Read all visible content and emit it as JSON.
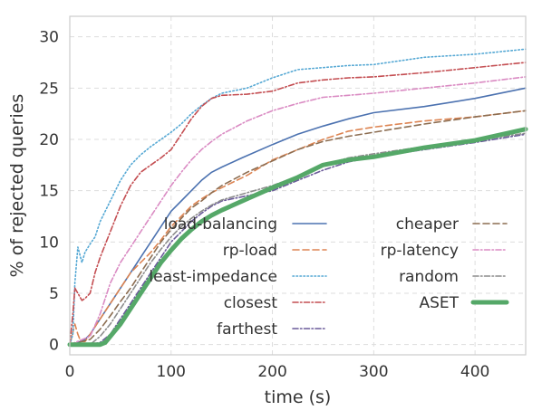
{
  "chart_data": {
    "type": "line",
    "title": "",
    "xlabel": "time (s)",
    "ylabel": "% of rejected queries",
    "xlim": [
      0,
      450
    ],
    "ylim": [
      -1,
      32
    ],
    "xticks": [
      0,
      100,
      200,
      300,
      400
    ],
    "yticks": [
      0,
      5,
      10,
      15,
      20,
      25,
      30
    ],
    "grid": true,
    "legend_position": "center-right",
    "series": [
      {
        "name": "load-balancing",
        "color": "#4c72b0",
        "style": "solid",
        "points": [
          [
            0,
            0
          ],
          [
            5,
            0
          ],
          [
            10,
            0.3
          ],
          [
            15,
            0.5
          ],
          [
            20,
            1
          ],
          [
            30,
            2.5
          ],
          [
            40,
            4
          ],
          [
            50,
            5.5
          ],
          [
            60,
            7
          ],
          [
            70,
            8.5
          ],
          [
            80,
            10
          ],
          [
            90,
            11.5
          ],
          [
            100,
            13
          ],
          [
            110,
            14
          ],
          [
            120,
            15
          ],
          [
            130,
            16
          ],
          [
            140,
            16.8
          ],
          [
            150,
            17.3
          ],
          [
            170,
            18.2
          ],
          [
            200,
            19.5
          ],
          [
            225,
            20.5
          ],
          [
            250,
            21.3
          ],
          [
            275,
            22
          ],
          [
            300,
            22.6
          ],
          [
            350,
            23.2
          ],
          [
            400,
            24
          ],
          [
            450,
            25
          ]
        ]
      },
      {
        "name": "rp-load",
        "color": "#dd8452",
        "style": "dashed",
        "points": [
          [
            0,
            0
          ],
          [
            5,
            2
          ],
          [
            8,
            1
          ],
          [
            10,
            0.5
          ],
          [
            12,
            0.3
          ],
          [
            15,
            0.3
          ],
          [
            20,
            1
          ],
          [
            30,
            2.5
          ],
          [
            40,
            4
          ],
          [
            50,
            5.5
          ],
          [
            60,
            7
          ],
          [
            70,
            8
          ],
          [
            80,
            9
          ],
          [
            90,
            10.2
          ],
          [
            100,
            11.5
          ],
          [
            110,
            12.5
          ],
          [
            120,
            13.5
          ],
          [
            130,
            14.2
          ],
          [
            140,
            14.8
          ],
          [
            150,
            15.3
          ],
          [
            175,
            16.5
          ],
          [
            200,
            18
          ],
          [
            225,
            19
          ],
          [
            250,
            20
          ],
          [
            275,
            20.8
          ],
          [
            300,
            21.2
          ],
          [
            350,
            21.8
          ],
          [
            400,
            22.2
          ],
          [
            450,
            22.8
          ]
        ]
      },
      {
        "name": "least-impedance",
        "color": "#55a8d4",
        "style": "dotted",
        "points": [
          [
            0,
            0
          ],
          [
            3,
            1
          ],
          [
            5,
            6
          ],
          [
            8,
            9.5
          ],
          [
            12,
            8
          ],
          [
            15,
            9
          ],
          [
            20,
            9.8
          ],
          [
            25,
            10.5
          ],
          [
            30,
            12
          ],
          [
            40,
            14
          ],
          [
            50,
            16
          ],
          [
            60,
            17.5
          ],
          [
            70,
            18.5
          ],
          [
            80,
            19.3
          ],
          [
            90,
            20
          ],
          [
            100,
            20.7
          ],
          [
            110,
            21.5
          ],
          [
            120,
            22.5
          ],
          [
            130,
            23.3
          ],
          [
            140,
            24
          ],
          [
            150,
            24.5
          ],
          [
            175,
            25
          ],
          [
            200,
            26
          ],
          [
            225,
            26.8
          ],
          [
            250,
            27
          ],
          [
            275,
            27.2
          ],
          [
            300,
            27.3
          ],
          [
            350,
            28
          ],
          [
            400,
            28.3
          ],
          [
            450,
            28.8
          ]
        ]
      },
      {
        "name": "closest",
        "color": "#c44e52",
        "style": "dashdot",
        "points": [
          [
            0,
            0
          ],
          [
            3,
            3
          ],
          [
            5,
            5.5
          ],
          [
            8,
            5
          ],
          [
            12,
            4.3
          ],
          [
            15,
            4.5
          ],
          [
            20,
            5
          ],
          [
            25,
            7
          ],
          [
            30,
            8.5
          ],
          [
            40,
            11
          ],
          [
            50,
            13.5
          ],
          [
            60,
            15.5
          ],
          [
            70,
            16.8
          ],
          [
            80,
            17.5
          ],
          [
            90,
            18.2
          ],
          [
            100,
            19
          ],
          [
            110,
            20.5
          ],
          [
            120,
            22
          ],
          [
            130,
            23.2
          ],
          [
            140,
            24
          ],
          [
            150,
            24.3
          ],
          [
            175,
            24.4
          ],
          [
            200,
            24.7
          ],
          [
            225,
            25.5
          ],
          [
            250,
            25.8
          ],
          [
            275,
            26
          ],
          [
            300,
            26.1
          ],
          [
            350,
            26.5
          ],
          [
            400,
            27
          ],
          [
            450,
            27.5
          ]
        ]
      },
      {
        "name": "farthest",
        "color": "#6a5a9a",
        "style": "dashdot",
        "points": [
          [
            0,
            0
          ],
          [
            20,
            0
          ],
          [
            30,
            0.2
          ],
          [
            40,
            1
          ],
          [
            50,
            2.5
          ],
          [
            60,
            4
          ],
          [
            70,
            5.5
          ],
          [
            80,
            7
          ],
          [
            90,
            8.5
          ],
          [
            100,
            10
          ],
          [
            110,
            11
          ],
          [
            120,
            12
          ],
          [
            130,
            12.8
          ],
          [
            140,
            13.5
          ],
          [
            150,
            14
          ],
          [
            175,
            14.5
          ],
          [
            200,
            15
          ],
          [
            225,
            16
          ],
          [
            250,
            17
          ],
          [
            275,
            17.8
          ],
          [
            300,
            18.3
          ],
          [
            350,
            19
          ],
          [
            400,
            19.7
          ],
          [
            450,
            20.5
          ]
        ]
      },
      {
        "name": "cheaper",
        "color": "#8c6d51",
        "style": "dashed",
        "points": [
          [
            0,
            0
          ],
          [
            20,
            0.5
          ],
          [
            30,
            1.5
          ],
          [
            40,
            2.8
          ],
          [
            50,
            4.2
          ],
          [
            60,
            5.5
          ],
          [
            70,
            7
          ],
          [
            80,
            8.5
          ],
          [
            90,
            10
          ],
          [
            100,
            11.2
          ],
          [
            110,
            12.3
          ],
          [
            120,
            13.3
          ],
          [
            130,
            14
          ],
          [
            140,
            14.8
          ],
          [
            150,
            15.5
          ],
          [
            175,
            16.8
          ],
          [
            200,
            17.9
          ],
          [
            225,
            19
          ],
          [
            250,
            19.8
          ],
          [
            275,
            20.3
          ],
          [
            300,
            20.7
          ],
          [
            350,
            21.5
          ],
          [
            400,
            22.2
          ],
          [
            450,
            22.8
          ]
        ]
      },
      {
        "name": "rp-latency",
        "color": "#da8bc3",
        "style": "dashdot",
        "points": [
          [
            0,
            0
          ],
          [
            20,
            0.8
          ],
          [
            30,
            3
          ],
          [
            40,
            6
          ],
          [
            50,
            8
          ],
          [
            60,
            9.5
          ],
          [
            70,
            11
          ],
          [
            80,
            12.5
          ],
          [
            90,
            14
          ],
          [
            100,
            15.5
          ],
          [
            110,
            16.8
          ],
          [
            120,
            18
          ],
          [
            130,
            19
          ],
          [
            140,
            19.8
          ],
          [
            150,
            20.5
          ],
          [
            175,
            21.8
          ],
          [
            200,
            22.8
          ],
          [
            225,
            23.5
          ],
          [
            250,
            24.1
          ],
          [
            275,
            24.3
          ],
          [
            300,
            24.5
          ],
          [
            350,
            25
          ],
          [
            400,
            25.5
          ],
          [
            450,
            26.1
          ]
        ]
      },
      {
        "name": "random",
        "color": "#8c8c8c",
        "style": "dashdot",
        "points": [
          [
            0,
            0
          ],
          [
            20,
            0
          ],
          [
            30,
            0.8
          ],
          [
            40,
            2
          ],
          [
            50,
            3.5
          ],
          [
            60,
            5
          ],
          [
            70,
            6.5
          ],
          [
            80,
            8
          ],
          [
            90,
            9.3
          ],
          [
            100,
            10.5
          ],
          [
            110,
            11.5
          ],
          [
            120,
            12.3
          ],
          [
            130,
            13
          ],
          [
            140,
            13.6
          ],
          [
            150,
            14.1
          ],
          [
            175,
            14.8
          ],
          [
            200,
            15.5
          ],
          [
            225,
            16.4
          ],
          [
            250,
            17.5
          ],
          [
            275,
            18.2
          ],
          [
            300,
            18.6
          ],
          [
            350,
            19.3
          ],
          [
            400,
            19.9
          ],
          [
            450,
            20.6
          ]
        ]
      },
      {
        "name": "ASET",
        "color": "#55a868",
        "style": "thick",
        "points": [
          [
            0,
            0
          ],
          [
            30,
            0
          ],
          [
            35,
            0.2
          ],
          [
            40,
            0.8
          ],
          [
            50,
            2
          ],
          [
            60,
            3.5
          ],
          [
            70,
            5
          ],
          [
            80,
            6.5
          ],
          [
            90,
            8
          ],
          [
            100,
            9.2
          ],
          [
            110,
            10.3
          ],
          [
            120,
            11.2
          ],
          [
            130,
            12
          ],
          [
            140,
            12.6
          ],
          [
            150,
            13.1
          ],
          [
            175,
            14.2
          ],
          [
            200,
            15.3
          ],
          [
            225,
            16.3
          ],
          [
            250,
            17.5
          ],
          [
            275,
            18
          ],
          [
            300,
            18.3
          ],
          [
            350,
            19.2
          ],
          [
            400,
            19.9
          ],
          [
            450,
            21
          ]
        ]
      }
    ]
  }
}
